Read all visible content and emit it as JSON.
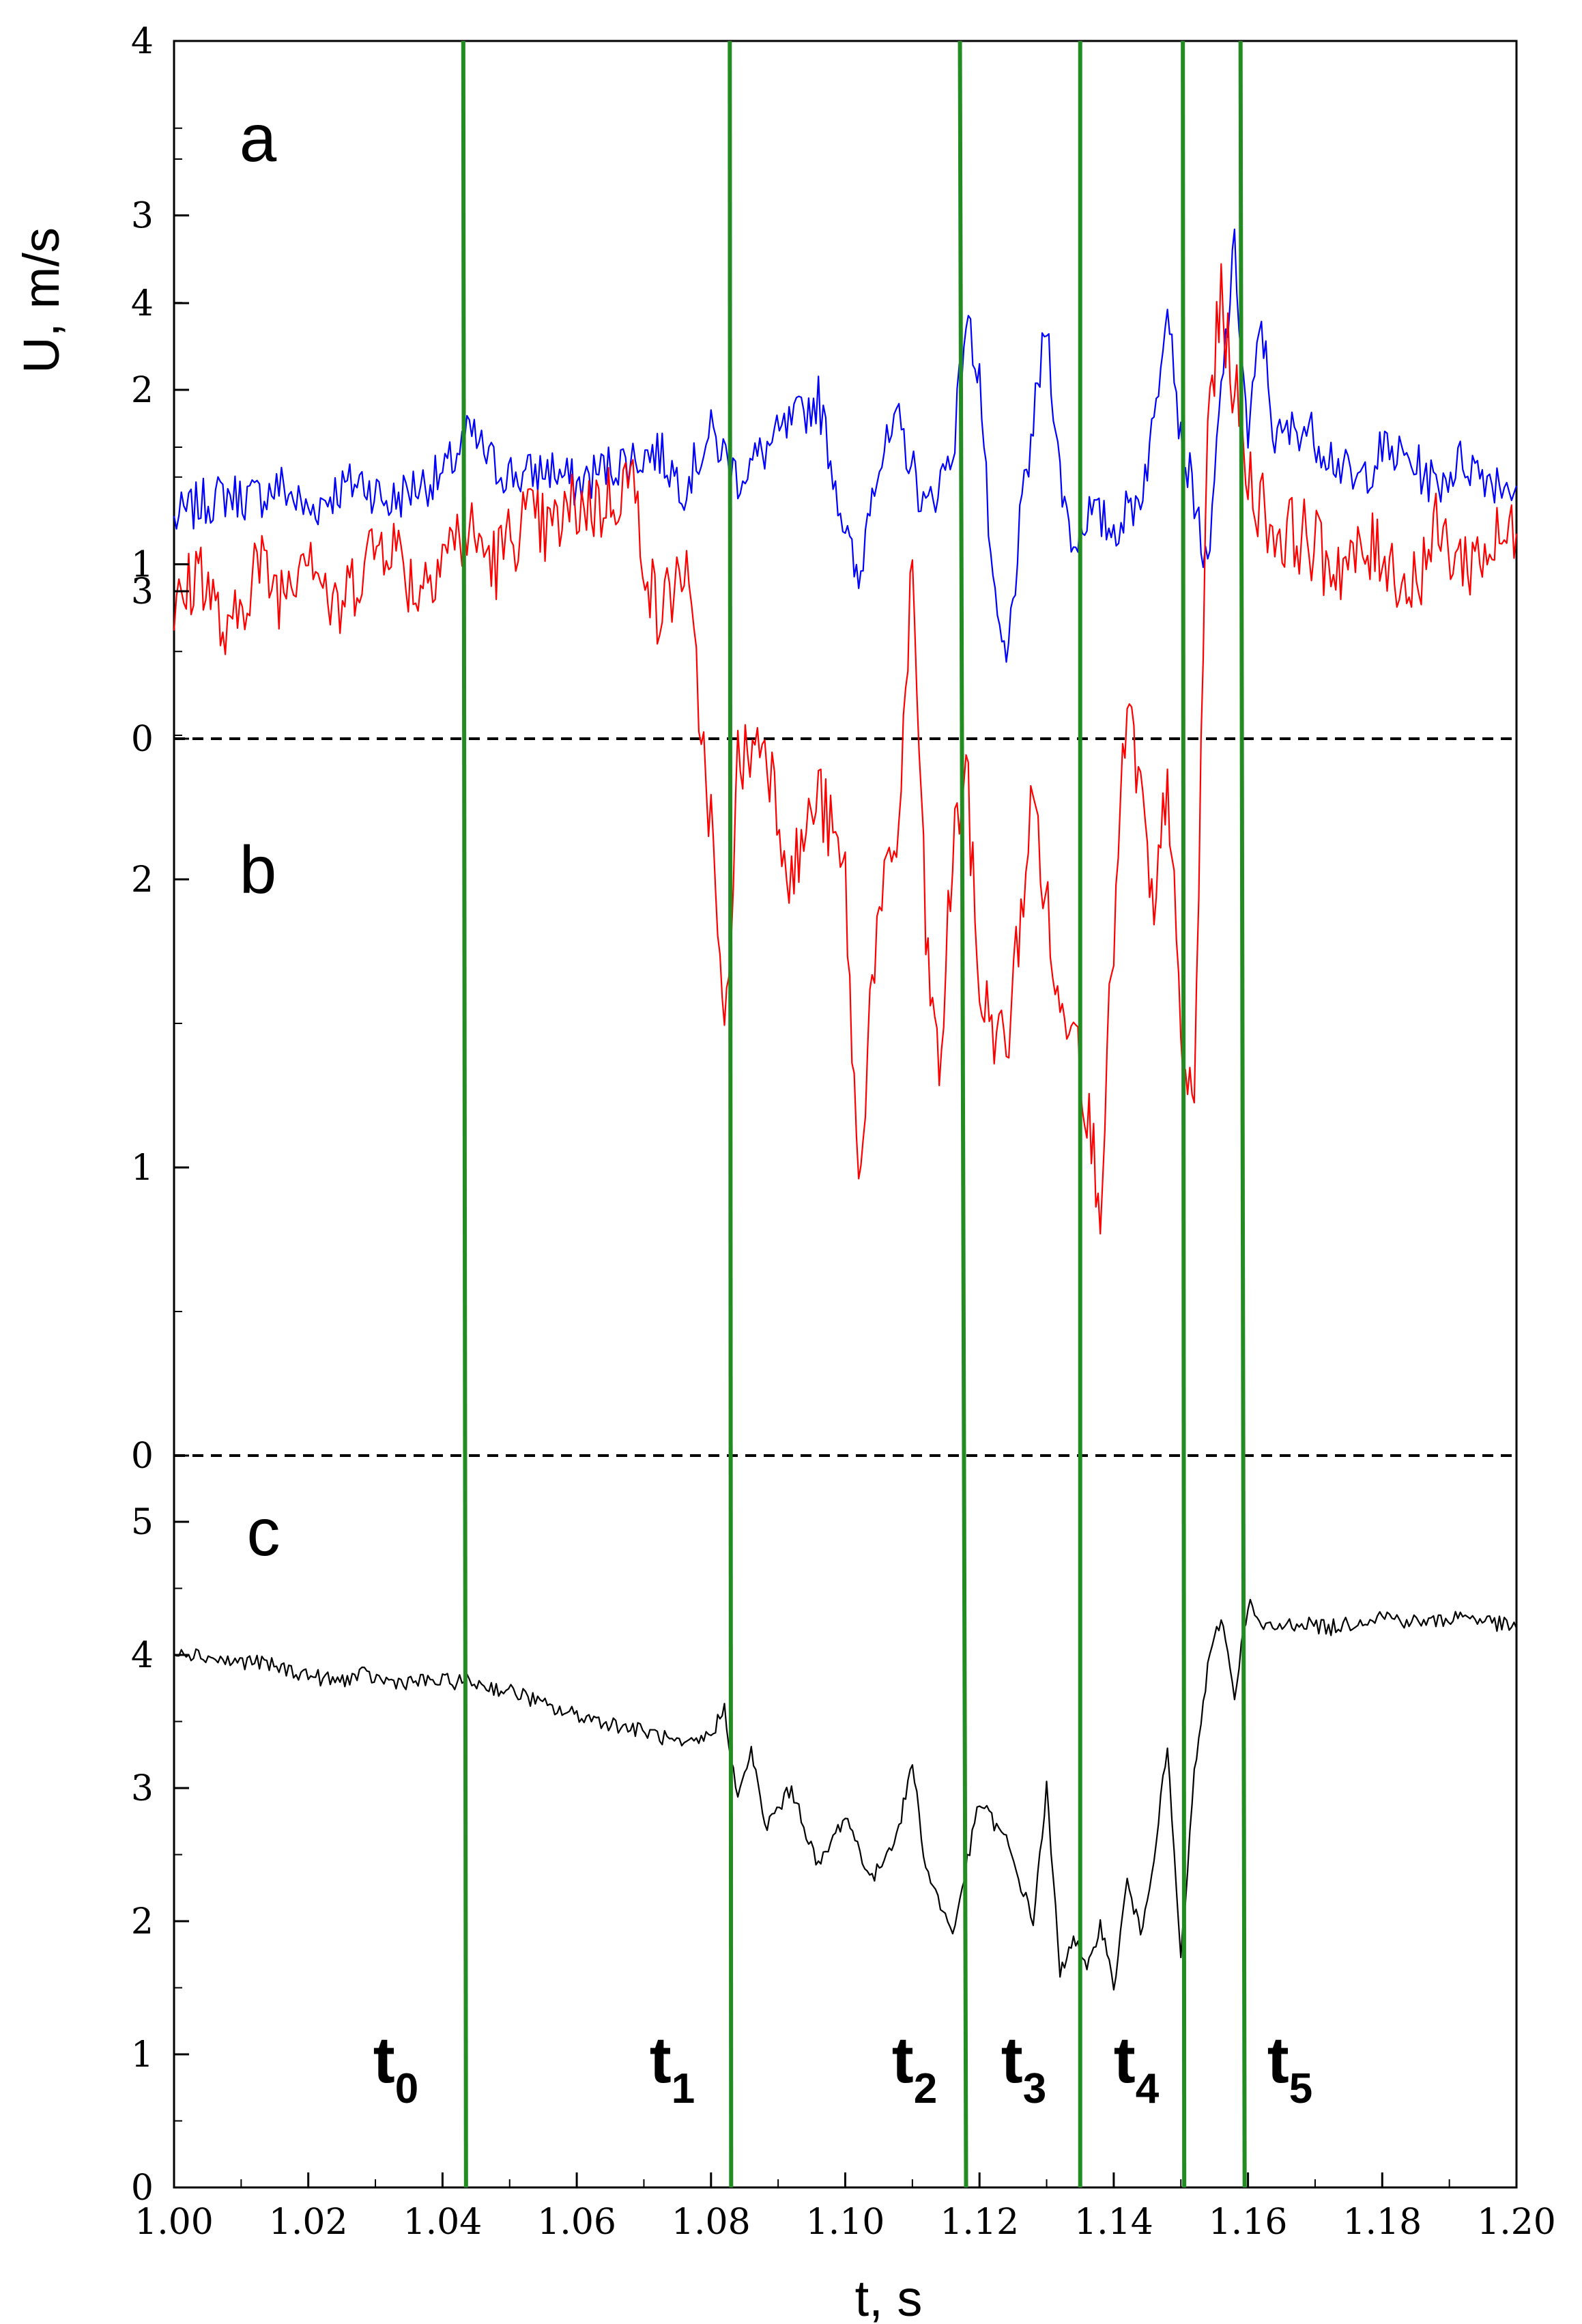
{
  "chart_data": {
    "type": "line",
    "x_range": [
      1.0,
      1.2
    ],
    "xlabel": "t, s",
    "ylabel": "U, m/s",
    "x_ticks": [
      1.0,
      1.02,
      1.04,
      1.06,
      1.08,
      1.1,
      1.12,
      1.14,
      1.16,
      1.18,
      1.2
    ],
    "x_tick_labels": [
      "1.00",
      "1.02",
      "1.04",
      "1.06",
      "1.08",
      "1.10",
      "1.12",
      "1.14",
      "1.16",
      "1.18",
      "1.20"
    ],
    "grid": false,
    "legend": "none",
    "panels": [
      {
        "label": "a",
        "color": "#0000ff",
        "ylim": [
          0,
          4
        ],
        "y_ticks": [
          0,
          1,
          2,
          3,
          4
        ],
        "y_tick_labels": [
          "0",
          "1",
          "2",
          "3",
          "4"
        ],
        "x": [
          1.0,
          1.004,
          1.008,
          1.012,
          1.016,
          1.02,
          1.024,
          1.028,
          1.032,
          1.036,
          1.04,
          1.044,
          1.048,
          1.052,
          1.056,
          1.06,
          1.064,
          1.068,
          1.072,
          1.076,
          1.08,
          1.084,
          1.088,
          1.092,
          1.096,
          1.1,
          1.102,
          1.104,
          1.108,
          1.112,
          1.116,
          1.118,
          1.12,
          1.122,
          1.124,
          1.126,
          1.128,
          1.13,
          1.132,
          1.134,
          1.136,
          1.14,
          1.144,
          1.146,
          1.148,
          1.15,
          1.152,
          1.154,
          1.156,
          1.158,
          1.16,
          1.162,
          1.164,
          1.168,
          1.172,
          1.176,
          1.18,
          1.184,
          1.188,
          1.192,
          1.196,
          1.2
        ],
        "y": [
          1.25,
          1.35,
          1.4,
          1.38,
          1.45,
          1.3,
          1.42,
          1.48,
          1.35,
          1.45,
          1.5,
          1.75,
          1.55,
          1.5,
          1.55,
          1.45,
          1.55,
          1.6,
          1.65,
          1.45,
          1.75,
          1.5,
          1.65,
          1.8,
          1.95,
          1.2,
          0.85,
          1.5,
          1.8,
          1.3,
          1.65,
          2.4,
          2.1,
          0.8,
          0.4,
          1.2,
          1.8,
          2.4,
          1.5,
          1.1,
          1.3,
          1.2,
          1.4,
          1.8,
          2.6,
          1.7,
          1.4,
          0.9,
          2.0,
          2.8,
          1.7,
          2.4,
          1.7,
          1.8,
          1.65,
          1.45,
          1.65,
          1.6,
          1.45,
          1.6,
          1.5,
          1.45
        ]
      },
      {
        "label": "b",
        "color": "#ff0000",
        "ylim": [
          0,
          4.5
        ],
        "y_ticks": [
          0,
          1,
          2,
          3,
          4
        ],
        "y_tick_labels": [
          "0",
          "1",
          "2",
          "3",
          "4"
        ],
        "x": [
          1.0,
          1.004,
          1.008,
          1.012,
          1.016,
          1.02,
          1.024,
          1.028,
          1.032,
          1.036,
          1.04,
          1.044,
          1.048,
          1.052,
          1.056,
          1.06,
          1.064,
          1.068,
          1.072,
          1.076,
          1.08,
          1.082,
          1.084,
          1.088,
          1.092,
          1.096,
          1.1,
          1.102,
          1.104,
          1.108,
          1.11,
          1.112,
          1.114,
          1.116,
          1.118,
          1.12,
          1.124,
          1.128,
          1.132,
          1.134,
          1.136,
          1.138,
          1.14,
          1.142,
          1.144,
          1.146,
          1.148,
          1.15,
          1.152,
          1.154,
          1.156,
          1.158,
          1.16,
          1.164,
          1.168,
          1.172,
          1.176,
          1.18,
          1.184,
          1.188,
          1.192,
          1.196,
          1.2
        ],
        "y": [
          2.9,
          3.1,
          2.8,
          3.1,
          3.0,
          3.2,
          2.9,
          3.1,
          3.2,
          3.0,
          3.15,
          3.2,
          3.1,
          3.25,
          3.2,
          3.3,
          3.3,
          3.4,
          2.9,
          3.1,
          2.2,
          1.4,
          2.4,
          2.5,
          2.0,
          2.3,
          2.0,
          0.9,
          1.7,
          2.2,
          3.1,
          1.8,
          1.3,
          2.1,
          2.4,
          1.6,
          1.4,
          2.3,
          1.5,
          1.6,
          1.2,
          0.9,
          1.8,
          2.6,
          2.3,
          1.8,
          2.4,
          1.4,
          1.2,
          3.6,
          4.0,
          3.7,
          3.4,
          3.2,
          3.2,
          3.1,
          3.1,
          3.15,
          3.0,
          3.2,
          3.1,
          3.15,
          3.2
        ]
      },
      {
        "label": "c",
        "color": "#000000",
        "ylim": [
          0,
          5.5
        ],
        "y_ticks": [
          0,
          1,
          2,
          3,
          4,
          5
        ],
        "y_tick_labels": [
          "0",
          "1",
          "2",
          "3",
          "4",
          "5"
        ],
        "x": [
          1.0,
          1.004,
          1.008,
          1.012,
          1.016,
          1.02,
          1.024,
          1.028,
          1.032,
          1.036,
          1.04,
          1.044,
          1.048,
          1.052,
          1.056,
          1.06,
          1.064,
          1.068,
          1.072,
          1.076,
          1.08,
          1.082,
          1.084,
          1.086,
          1.088,
          1.092,
          1.096,
          1.1,
          1.104,
          1.108,
          1.11,
          1.112,
          1.116,
          1.12,
          1.124,
          1.128,
          1.13,
          1.132,
          1.134,
          1.136,
          1.138,
          1.14,
          1.142,
          1.144,
          1.146,
          1.148,
          1.15,
          1.152,
          1.154,
          1.156,
          1.158,
          1.16,
          1.162,
          1.164,
          1.168,
          1.172,
          1.176,
          1.18,
          1.184,
          1.188,
          1.192,
          1.196,
          1.2
        ],
        "y": [
          4.05,
          4.0,
          3.95,
          3.95,
          3.9,
          3.85,
          3.8,
          3.85,
          3.8,
          3.8,
          3.8,
          3.8,
          3.75,
          3.7,
          3.6,
          3.55,
          3.5,
          3.45,
          3.4,
          3.3,
          3.4,
          3.6,
          2.9,
          3.3,
          2.7,
          3.0,
          2.4,
          2.8,
          2.3,
          2.7,
          3.2,
          2.4,
          1.9,
          2.9,
          2.6,
          2.0,
          3.0,
          1.6,
          1.9,
          1.6,
          2.0,
          1.5,
          2.3,
          1.9,
          2.5,
          3.3,
          1.7,
          3.1,
          3.9,
          4.3,
          3.7,
          4.4,
          4.2,
          4.2,
          4.25,
          4.2,
          4.25,
          4.3,
          4.25,
          4.25,
          4.3,
          4.25,
          4.2
        ]
      }
    ],
    "markers": [
      {
        "main": "t",
        "sub": "0",
        "x": 1.0435
      },
      {
        "main": "t",
        "sub": "1",
        "x": 1.083
      },
      {
        "main": "t",
        "sub": "2",
        "x": 1.118
      },
      {
        "main": "t",
        "sub": "3",
        "x": 1.135
      },
      {
        "main": "t",
        "sub": "4",
        "x": 1.1505
      },
      {
        "main": "t",
        "sub": "5",
        "x": 1.1595
      }
    ],
    "marker_color": "#228b22",
    "zero_line_style": "dashed"
  }
}
